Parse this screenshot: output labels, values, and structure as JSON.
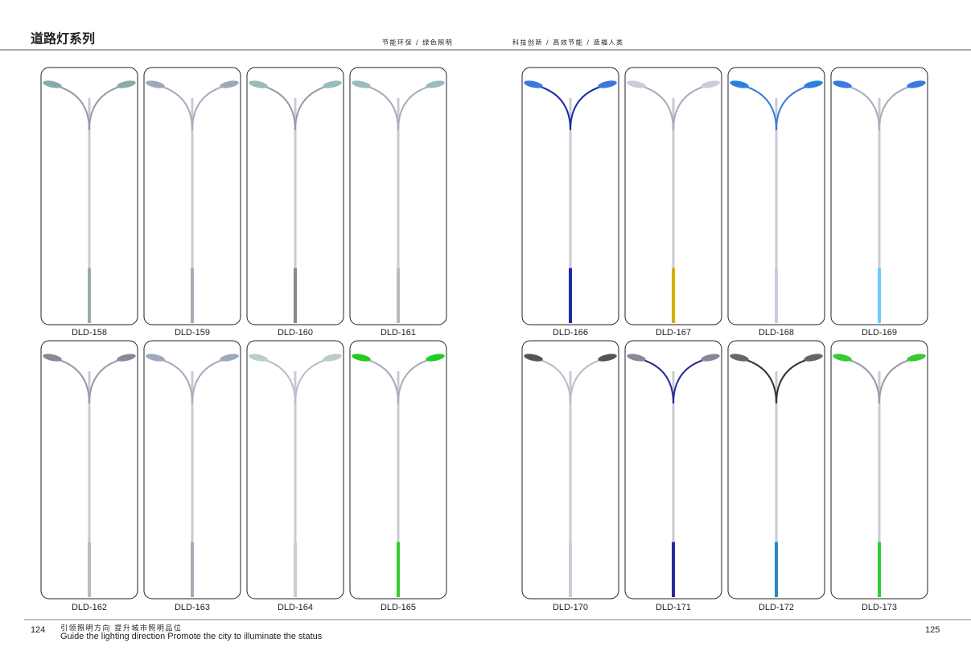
{
  "header": {
    "title": "道路灯系列",
    "slogans": [
      "节能环保  /  绿色照明",
      "科技创新  /  高效节能  /  造福人类"
    ]
  },
  "pages": [
    {
      "number": "124",
      "products": [
        "DLD-158",
        "DLD-159",
        "DLD-160",
        "DLD-161",
        "DLD-162",
        "DLD-163",
        "DLD-164",
        "DLD-165"
      ]
    },
    {
      "number": "125",
      "products": [
        "DLD-166",
        "DLD-167",
        "DLD-168",
        "DLD-169",
        "DLD-170",
        "DLD-171",
        "DLD-172",
        "DLD-173"
      ]
    }
  ],
  "footer": {
    "title": "引领照明方向    提升城市照明品位",
    "subtitle": "Guide the lighting direction Promote the city to illuminate the status"
  }
}
